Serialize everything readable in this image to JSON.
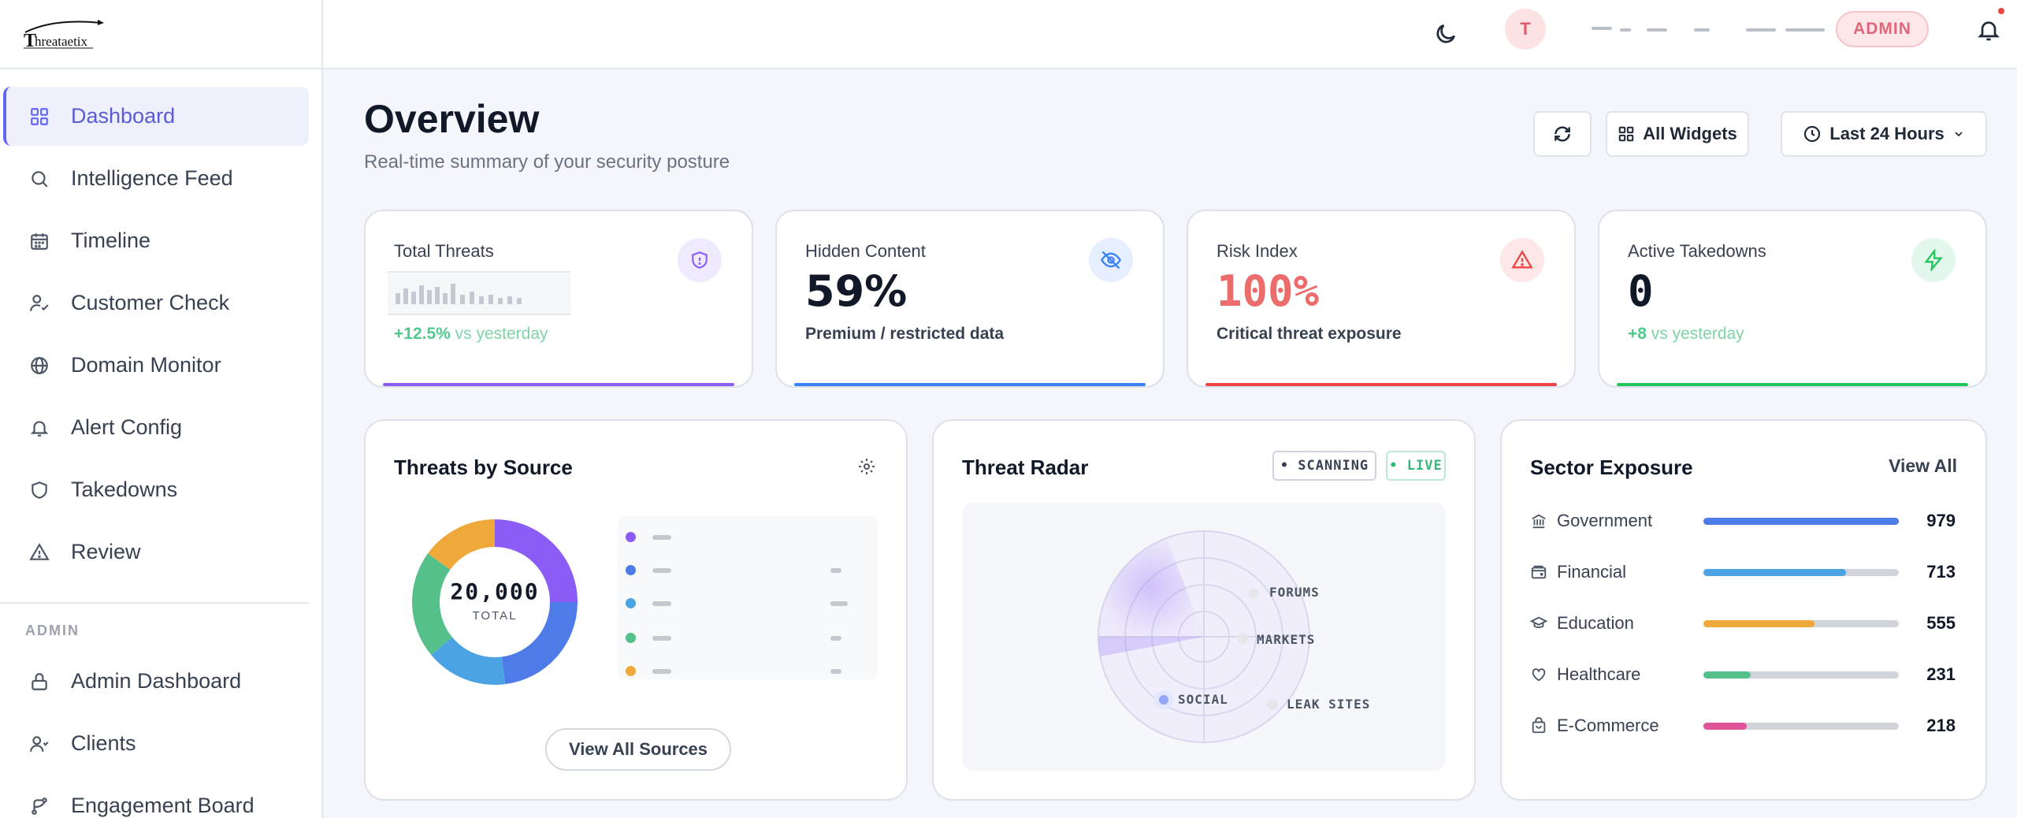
{
  "brand": {
    "logo_text": "hreataetix"
  },
  "sidebar": {
    "items": [
      {
        "label": "Dashboard",
        "icon": "grid-icon"
      },
      {
        "label": "Intelligence Feed",
        "icon": "search-icon"
      },
      {
        "label": "Timeline",
        "icon": "calendar-icon"
      },
      {
        "label": "Customer Check",
        "icon": "user-check-icon"
      },
      {
        "label": "Domain Monitor",
        "icon": "globe-icon"
      },
      {
        "label": "Alert Config",
        "icon": "bell-icon"
      },
      {
        "label": "Takedowns",
        "icon": "shield-icon"
      },
      {
        "label": "Review",
        "icon": "warning-icon"
      }
    ],
    "admin_section_label": "ADMIN",
    "admin_items": [
      {
        "label": "Admin Dashboard",
        "icon": "lock-icon"
      },
      {
        "label": "Clients",
        "icon": "users-icon"
      },
      {
        "label": "Engagement Board",
        "icon": "branch-icon"
      }
    ]
  },
  "topbar": {
    "avatar_initial": "T",
    "role_badge": "ADMIN"
  },
  "header": {
    "title": "Overview",
    "subtitle": "Real-time summary of your security posture",
    "widgets_label": "All Widgets",
    "range_label": "Last 24 Hours"
  },
  "stats": [
    {
      "label": "Total Threats",
      "change": "+12.5%",
      "change_suffix": "vs yesterday",
      "accent": "#8b5cf6"
    },
    {
      "label": "Hidden Content",
      "value": "59%",
      "sub": "Premium / restricted data",
      "accent": "#3b82f6"
    },
    {
      "label": "Risk Index",
      "value": "100%",
      "sub": "Critical threat exposure",
      "accent": "#ef4444"
    },
    {
      "label": "Active Takedowns",
      "value": "0",
      "change": "+8",
      "change_suffix": "vs yesterday",
      "accent": "#22c55e"
    }
  ],
  "threats_by_source": {
    "title": "Threats by Source",
    "total_label": "TOTAL",
    "total_value": "20,000",
    "view_all_label": "View All Sources",
    "segments": [
      {
        "color": "#8b5cf6",
        "fraction": 0.25
      },
      {
        "color": "#4f7be8",
        "fraction": 0.23
      },
      {
        "color": "#4ba3e3",
        "fraction": 0.16
      },
      {
        "color": "#56c08b",
        "fraction": 0.21
      },
      {
        "color": "#efa93a",
        "fraction": 0.15
      }
    ]
  },
  "threat_radar": {
    "title": "Threat Radar",
    "scanning_label": "• SCANNING",
    "live_label": "• LIVE",
    "labels": [
      "FORUMS",
      "MARKETS",
      "SOCIAL",
      "LEAK SITES"
    ]
  },
  "sector_exposure": {
    "title": "Sector Exposure",
    "view_all_label": "View All",
    "rows": [
      {
        "label": "Government",
        "value": "979",
        "fraction": 1.0,
        "color": "#4f7be8",
        "icon": "bank-icon"
      },
      {
        "label": "Financial",
        "value": "713",
        "fraction": 0.73,
        "color": "#4ba3e3",
        "icon": "wallet-icon"
      },
      {
        "label": "Education",
        "value": "555",
        "fraction": 0.57,
        "color": "#efa93a",
        "icon": "graduation-cap-icon"
      },
      {
        "label": "Healthcare",
        "value": "231",
        "fraction": 0.24,
        "color": "#56c08b",
        "icon": "heart-icon"
      },
      {
        "label": "E-Commerce",
        "value": "218",
        "fraction": 0.22,
        "color": "#e0559a",
        "icon": "shopping-bag-icon"
      }
    ]
  }
}
